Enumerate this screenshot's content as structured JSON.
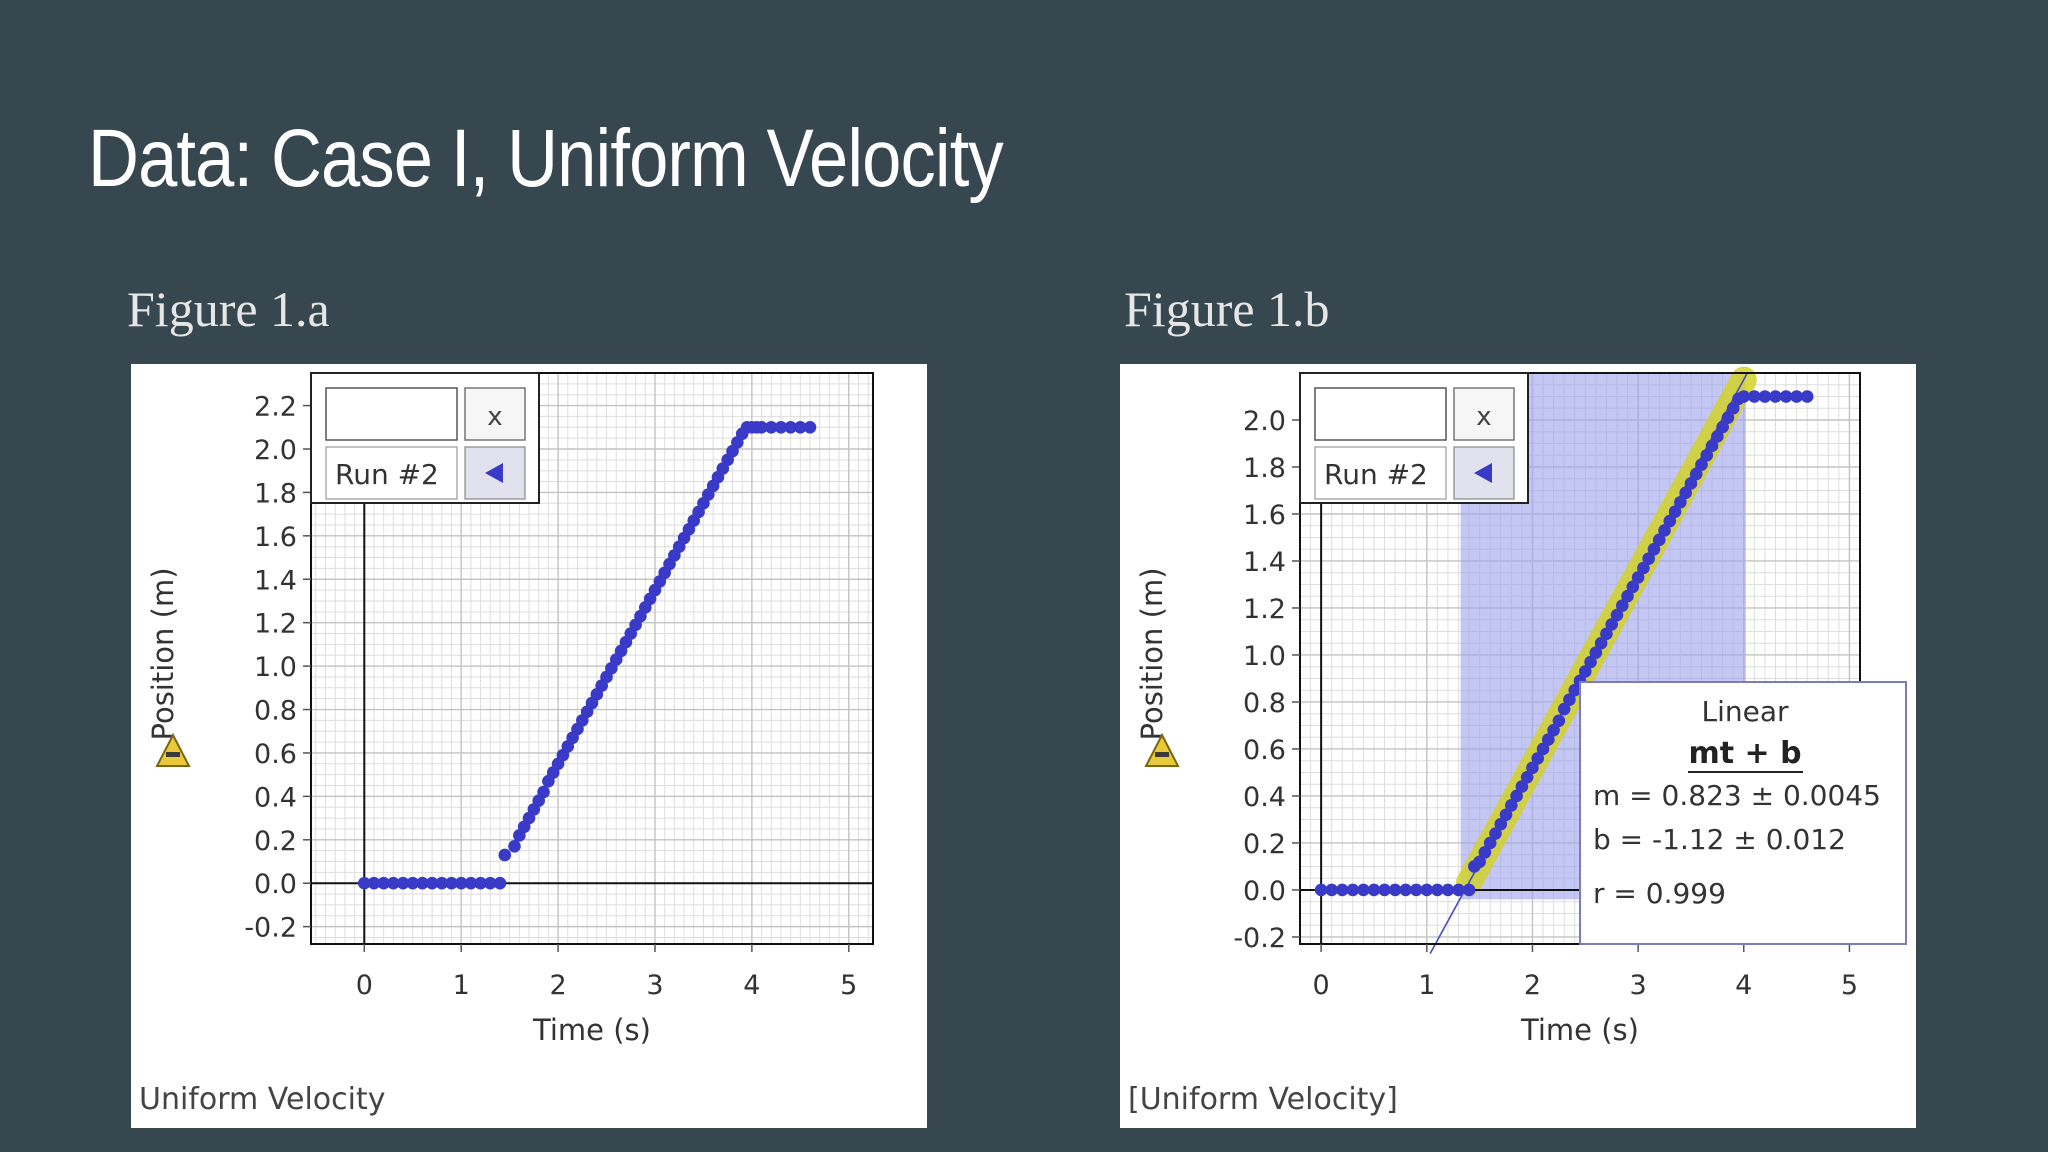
{
  "slide": {
    "title": "Data: Case I, Uniform Velocity"
  },
  "figures": [
    {
      "label": "Figure 1.a",
      "caption": "Uniform Velocity",
      "run_label": "Run #2",
      "close_symbol": "x",
      "warning_icon": "warning-triangle-icon",
      "play_icon": "left-triangle-icon"
    },
    {
      "label": "Figure 1.b",
      "caption": "[Uniform Velocity]",
      "run_label": "Run #2",
      "close_symbol": "x",
      "warning_icon": "warning-triangle-icon",
      "play_icon": "left-triangle-icon"
    }
  ],
  "chart_data": [
    {
      "type": "scatter",
      "title": "",
      "xlabel": "Time (s)",
      "ylabel": "Position (m)",
      "xlim": [
        -0.55,
        5.25
      ],
      "ylim": [
        -0.28,
        2.35
      ],
      "xticks": [
        "0",
        "1",
        "2",
        "3",
        "4",
        "5"
      ],
      "xtick_values": [
        0,
        1,
        2,
        3,
        4,
        5
      ],
      "yticks": [
        "-0.2",
        "0.0",
        "0.2",
        "0.4",
        "0.6",
        "0.8",
        "1.0",
        "1.2",
        "1.4",
        "1.6",
        "1.8",
        "2.0",
        "2.2"
      ],
      "ytick_values": [
        -0.2,
        0.0,
        0.2,
        0.4,
        0.6,
        0.8,
        1.0,
        1.2,
        1.4,
        1.6,
        1.8,
        2.0,
        2.2
      ],
      "grid": true,
      "point_color": "#3a3ac8",
      "series": [
        {
          "name": "Run #2",
          "x": [
            0,
            0.1,
            0.2,
            0.3,
            0.4,
            0.5,
            0.6,
            0.7,
            0.8,
            0.9,
            1.0,
            1.1,
            1.2,
            1.3,
            1.4,
            1.45,
            1.55,
            1.6,
            1.65,
            1.7,
            1.75,
            1.8,
            1.85,
            1.9,
            1.95,
            2.0,
            2.05,
            2.1,
            2.15,
            2.2,
            2.25,
            2.3,
            2.35,
            2.4,
            2.45,
            2.5,
            2.55,
            2.6,
            2.65,
            2.7,
            2.75,
            2.8,
            2.85,
            2.9,
            2.95,
            3.0,
            3.05,
            3.1,
            3.15,
            3.2,
            3.25,
            3.3,
            3.35,
            3.4,
            3.45,
            3.5,
            3.55,
            3.6,
            3.65,
            3.7,
            3.75,
            3.8,
            3.85,
            3.9,
            3.95,
            4.0,
            4.05,
            4.1,
            4.2,
            4.3,
            4.4,
            4.5,
            4.6
          ],
          "y": [
            0,
            0,
            0,
            0,
            0,
            0,
            0,
            0,
            0,
            0,
            0,
            0,
            0,
            0,
            0,
            0.13,
            0.17,
            0.22,
            0.26,
            0.3,
            0.34,
            0.38,
            0.42,
            0.47,
            0.51,
            0.55,
            0.59,
            0.63,
            0.67,
            0.71,
            0.75,
            0.79,
            0.83,
            0.87,
            0.91,
            0.95,
            0.99,
            1.03,
            1.07,
            1.11,
            1.15,
            1.19,
            1.23,
            1.27,
            1.31,
            1.35,
            1.39,
            1.43,
            1.47,
            1.51,
            1.55,
            1.59,
            1.63,
            1.67,
            1.71,
            1.75,
            1.79,
            1.83,
            1.87,
            1.91,
            1.95,
            1.99,
            2.03,
            2.07,
            2.1,
            2.1,
            2.1,
            2.1,
            2.1,
            2.1,
            2.1,
            2.1,
            2.1
          ]
        }
      ]
    },
    {
      "type": "scatter",
      "title": "",
      "xlabel": "Time (s)",
      "ylabel": "Position (m)",
      "xlim": [
        -0.2,
        5.1
      ],
      "ylim": [
        -0.23,
        2.2
      ],
      "xticks": [
        "0",
        "1",
        "2",
        "3",
        "4",
        "5"
      ],
      "xtick_values": [
        0,
        1,
        2,
        3,
        4,
        5
      ],
      "yticks": [
        "-0.2",
        "0.0",
        "0.2",
        "0.4",
        "0.6",
        "0.8",
        "1.0",
        "1.2",
        "1.4",
        "1.6",
        "1.8",
        "2.0"
      ],
      "ytick_values": [
        -0.2,
        0.0,
        0.2,
        0.4,
        0.6,
        0.8,
        1.0,
        1.2,
        1.4,
        1.6,
        1.8,
        2.0
      ],
      "grid": true,
      "point_color": "#3a3ac8",
      "selection_x": [
        1.32,
        4.02
      ],
      "selection_color": "#9fa3ec",
      "fit_band_color": "#d2d22a",
      "fit": {
        "m": 0.823,
        "b": -1.12
      },
      "fit_box": {
        "title": "Linear",
        "equation": "mt + b",
        "m_line": "m = 0.823 ± 0.0045",
        "b_line": "b  = -1.12  ± 0.012",
        "r_line": "r = 0.999"
      },
      "series": [
        {
          "name": "Run #2",
          "x": [
            0,
            0.1,
            0.2,
            0.3,
            0.4,
            0.5,
            0.6,
            0.7,
            0.8,
            0.9,
            1.0,
            1.1,
            1.2,
            1.3,
            1.4,
            1.45,
            1.5,
            1.55,
            1.6,
            1.65,
            1.7,
            1.75,
            1.8,
            1.85,
            1.9,
            1.95,
            2.0,
            2.05,
            2.1,
            2.15,
            2.2,
            2.25,
            2.3,
            2.35,
            2.4,
            2.45,
            2.5,
            2.55,
            2.6,
            2.65,
            2.7,
            2.75,
            2.8,
            2.85,
            2.9,
            2.95,
            3.0,
            3.05,
            3.1,
            3.15,
            3.2,
            3.25,
            3.3,
            3.35,
            3.4,
            3.45,
            3.5,
            3.55,
            3.6,
            3.65,
            3.7,
            3.75,
            3.8,
            3.85,
            3.9,
            3.95,
            4.0,
            4.1,
            4.2,
            4.3,
            4.4,
            4.5,
            4.6
          ],
          "y": [
            0,
            0,
            0,
            0,
            0,
            0,
            0,
            0,
            0,
            0,
            0,
            0,
            0,
            0,
            0,
            0.1,
            0.12,
            0.16,
            0.2,
            0.24,
            0.28,
            0.32,
            0.36,
            0.4,
            0.44,
            0.48,
            0.52,
            0.56,
            0.6,
            0.64,
            0.68,
            0.72,
            0.77,
            0.81,
            0.85,
            0.89,
            0.93,
            0.97,
            1.01,
            1.05,
            1.09,
            1.13,
            1.17,
            1.21,
            1.25,
            1.29,
            1.33,
            1.37,
            1.41,
            1.45,
            1.49,
            1.53,
            1.57,
            1.61,
            1.65,
            1.69,
            1.73,
            1.77,
            1.81,
            1.85,
            1.89,
            1.93,
            1.97,
            2.01,
            2.05,
            2.09,
            2.1,
            2.1,
            2.1,
            2.1,
            2.1,
            2.1,
            2.1
          ]
        }
      ]
    }
  ]
}
